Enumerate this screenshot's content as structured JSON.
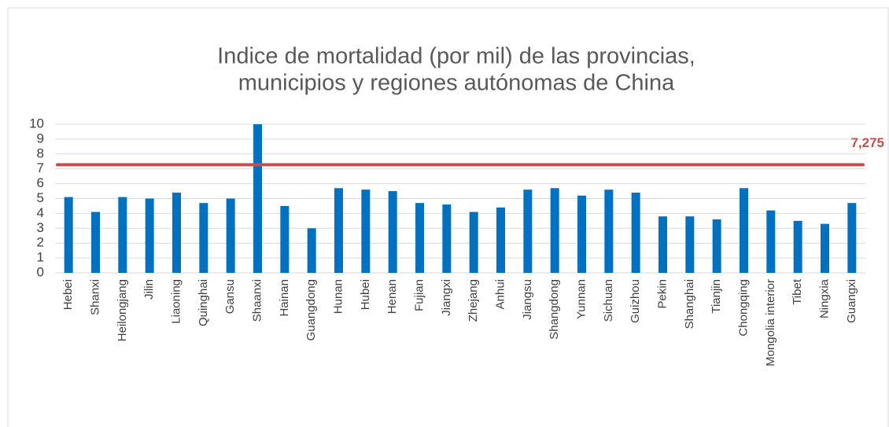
{
  "chart_data": {
    "type": "bar",
    "title": [
      "Indice de mortalidad (por mil) de las provincias,",
      "municipios y regiones autónomas de China"
    ],
    "categories": [
      "Hebei",
      "Shanxi",
      "Heilongjang",
      "Jilin",
      "Liaoning",
      "Quinghai",
      "Gansu",
      "Shaanxi",
      "Hainan",
      "Guangdong",
      "Hunan",
      "Hubei",
      "Henan",
      "Fujian",
      "Jiangxi",
      "Zhejang",
      "Anhui",
      "Jiangsu",
      "Shangdong",
      "Yunnan",
      "Sichuan",
      "Guizhou",
      "Pekin",
      "Shanghai",
      "Tianjin",
      "Chongqing",
      "Mongolia interior",
      "Tibet",
      "Ningxia",
      "Guangxi"
    ],
    "values": [
      5.1,
      4.1,
      5.1,
      5.0,
      5.4,
      4.7,
      5.0,
      10,
      4.5,
      3.0,
      5.7,
      5.6,
      5.5,
      4.7,
      4.6,
      4.1,
      4.4,
      5.6,
      5.7,
      5.2,
      5.6,
      5.4,
      3.8,
      3.8,
      3.6,
      5.7,
      4.2,
      3.5,
      3.3,
      4.7
    ],
    "color": "#0070c0",
    "ylim": [
      0,
      10
    ],
    "yticks": [
      0,
      1,
      2,
      3,
      4,
      5,
      6,
      7,
      8,
      9,
      10
    ],
    "grid": true,
    "reference_line": {
      "value": 7.275,
      "label": "7,275",
      "color": "#c0504d"
    }
  }
}
